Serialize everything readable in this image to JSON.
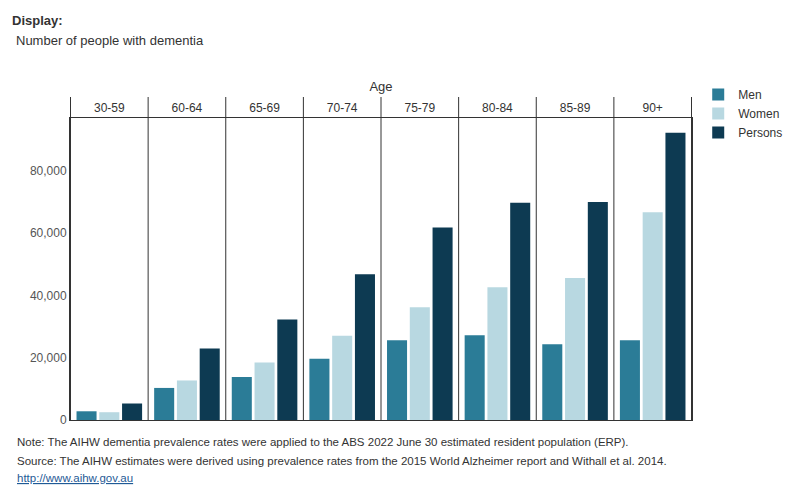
{
  "chart_data": {
    "type": "bar",
    "title": "Display:",
    "subtitle": "Number of people with dementia",
    "x_label": "Age",
    "categories": [
      "30-59",
      "60-64",
      "65-69",
      "70-74",
      "75-79",
      "80-84",
      "85-89",
      "90+"
    ],
    "series": [
      {
        "name": "Men",
        "color": "#2b7c97",
        "values": [
          2800,
          10300,
          13800,
          19700,
          25600,
          27200,
          24300,
          25600
        ]
      },
      {
        "name": "Women",
        "color": "#b8d8e1",
        "values": [
          2500,
          12700,
          18500,
          27100,
          36200,
          42600,
          45600,
          66700
        ]
      },
      {
        "name": "Persons",
        "color": "#0d3a52",
        "values": [
          5300,
          23000,
          32300,
          46800,
          61800,
          69800,
          70000,
          92300
        ]
      }
    ],
    "ylim": [
      0,
      97000
    ],
    "yticks": [
      0,
      {
        "value": 20000,
        "label": "20,000"
      },
      {
        "value": 40000,
        "label": "40,000"
      },
      {
        "value": 60000,
        "label": "60,000"
      },
      {
        "value": 80000,
        "label": "80,000"
      }
    ],
    "grid": false,
    "legend": "top right",
    "annotations": [
      "Note: The AIHW dementia prevalence rates were applied to the ABS 2022 June 30 estimated resident population (ERP).",
      "Source: The AIHW estimates were derived using prevalence rates from the 2015 World Alzheimer report and Withall et al. 2014.",
      "http://www.aihw.gov.au"
    ]
  }
}
